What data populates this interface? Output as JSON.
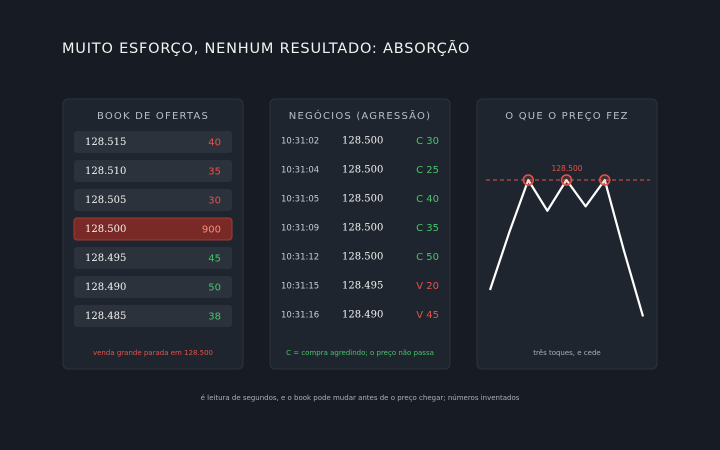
{
  "title": "MUITO ESFORÇO, NENHUM RESULTADO: ABSORÇÃO",
  "book": {
    "title": "BOOK DE OFERTAS",
    "rows": [
      {
        "price": "128.515",
        "qty": 40,
        "color": "#e5534b"
      },
      {
        "price": "128.510",
        "qty": 35,
        "color": "#e5534b"
      },
      {
        "price": "128.505",
        "qty": 30,
        "color": "#e5534b"
      },
      {
        "price": "128.500",
        "qty": 900,
        "color": "#e5534b",
        "highlight": true
      },
      {
        "price": "128.495",
        "qty": 45,
        "color": "#46c46a"
      },
      {
        "price": "128.490",
        "qty": 50,
        "color": "#46c46a"
      },
      {
        "price": "128.485",
        "qty": 38,
        "color": "#46c46a"
      }
    ],
    "note": "venda grande parada em 128.500"
  },
  "trades": {
    "title": "NEGÓCIOS (AGRESSÃO)",
    "rows": [
      {
        "time": "10:31:02",
        "price": "128.500",
        "aggr": "C 30",
        "color": "#46c46a"
      },
      {
        "time": "10:31:04",
        "price": "128.500",
        "aggr": "C 25",
        "color": "#46c46a"
      },
      {
        "time": "10:31:05",
        "price": "128.500",
        "aggr": "C 40",
        "color": "#46c46a"
      },
      {
        "time": "10:31:09",
        "price": "128.500",
        "aggr": "C 35",
        "color": "#46c46a"
      },
      {
        "time": "10:31:12",
        "price": "128.500",
        "aggr": "C 50",
        "color": "#46c46a"
      },
      {
        "time": "10:31:15",
        "price": "128.495",
        "aggr": "V 20",
        "color": "#e5534b"
      },
      {
        "time": "10:31:16",
        "price": "128.490",
        "aggr": "V 45",
        "color": "#e5534b"
      }
    ],
    "note": "C = compra agredindo; o preço não passa"
  },
  "chart_data": {
    "type": "line",
    "title": "O QUE O PREÇO FEZ",
    "values": [
      128.475,
      128.488,
      128.5,
      128.493,
      128.5,
      128.494,
      128.5,
      128.484,
      128.469
    ],
    "color": "#ffffff",
    "level": {
      "value": 128.5,
      "label": "128.500"
    },
    "level_color": "#e5534b",
    "ylim": [
      128.465,
      128.505
    ],
    "note": "três toques, e cede"
  },
  "footer": "é leitura de segundos, e o book pode mudar antes de o preço chegar; números inventados"
}
